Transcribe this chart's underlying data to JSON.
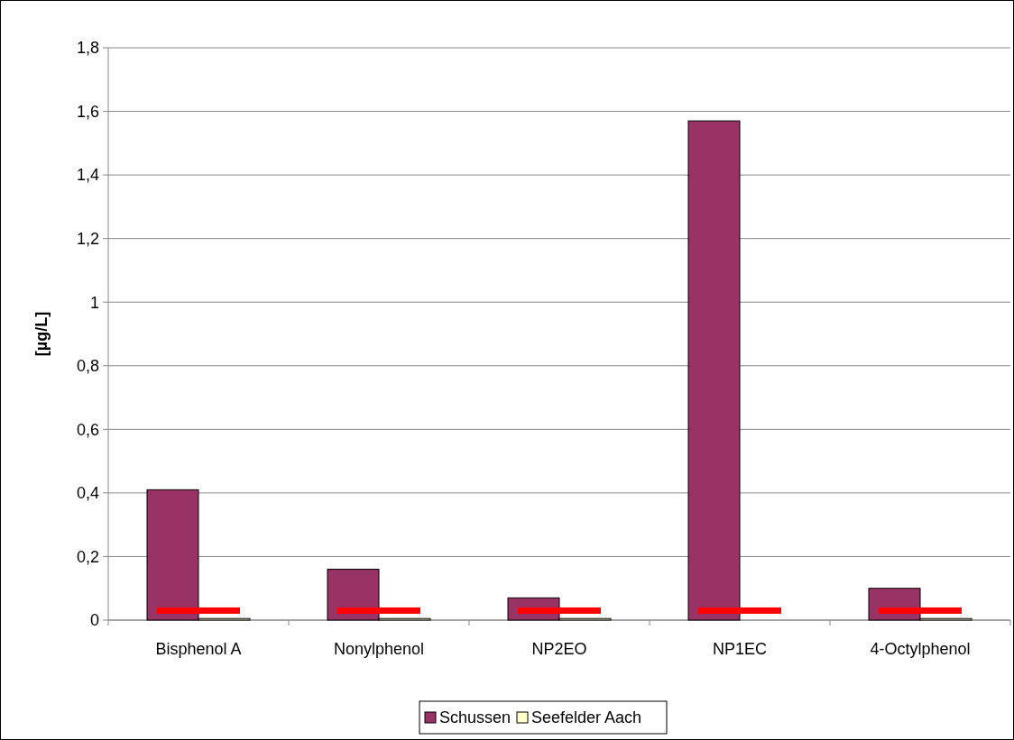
{
  "chart_data": {
    "type": "bar",
    "ylabel": "[µg/L]",
    "categories": [
      "Bisphenol A",
      "Nonylphenol",
      "NP2EO",
      "NP1EC",
      "4-Octylphenol"
    ],
    "series": [
      {
        "name": "Schussen",
        "color": "#993366",
        "values": [
          0.41,
          0.16,
          0.07,
          1.57,
          0.1
        ]
      },
      {
        "name": "Seefelder Aach",
        "color": "#ffffcc",
        "values": [
          0.005,
          0.005,
          0.005,
          0,
          0.005
        ]
      },
      {
        "type": "bar",
        "color": "#ff0000",
        "base": [
          0.02,
          0.02,
          0.02,
          0.02,
          0.02
        ],
        "values": [
          0.02,
          0.02,
          0.02,
          0.02,
          0.02
        ]
      }
    ],
    "ylim": [
      0,
      1.8
    ],
    "yticks": [
      0,
      {
        "value": 0.2,
        "label": "0,2"
      },
      {
        "value": 0.4,
        "label": "0,4"
      },
      {
        "value": 0.6,
        "label": "0,6"
      },
      {
        "value": 0.8,
        "label": "0,8"
      },
      1,
      {
        "value": 1.2,
        "label": "1,2"
      },
      {
        "value": 1.4,
        "label": "1,4"
      },
      {
        "value": 1.6,
        "label": "1,6"
      },
      {
        "value": 1.8,
        "label": "1,8"
      }
    ],
    "grid": "y",
    "legend": "bottom"
  }
}
